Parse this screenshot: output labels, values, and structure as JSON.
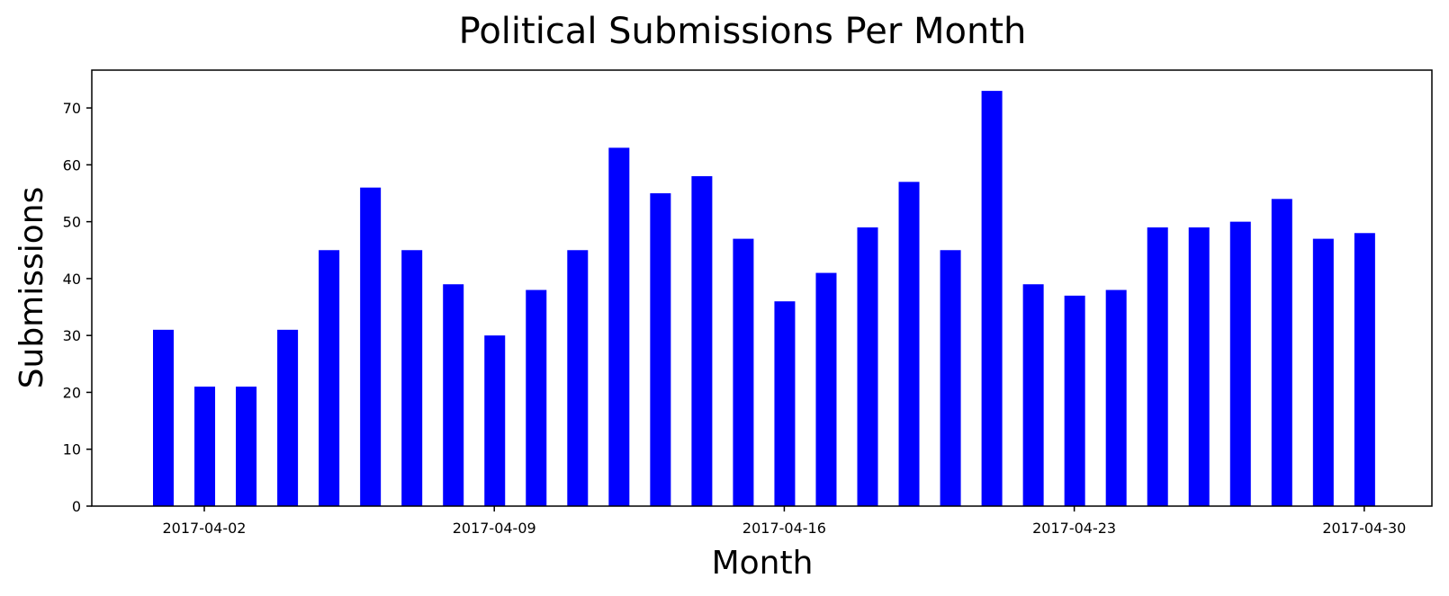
{
  "chart_data": {
    "type": "bar",
    "title": "Political Submissions Per Month",
    "xlabel": "Month",
    "ylabel": "Submissions",
    "x": [
      "2017-04-01",
      "2017-04-02",
      "2017-04-03",
      "2017-04-04",
      "2017-04-05",
      "2017-04-06",
      "2017-04-07",
      "2017-04-08",
      "2017-04-09",
      "2017-04-10",
      "2017-04-11",
      "2017-04-12",
      "2017-04-13",
      "2017-04-14",
      "2017-04-15",
      "2017-04-16",
      "2017-04-17",
      "2017-04-18",
      "2017-04-19",
      "2017-04-20",
      "2017-04-21",
      "2017-04-22",
      "2017-04-23",
      "2017-04-24",
      "2017-04-25",
      "2017-04-26",
      "2017-04-27",
      "2017-04-28",
      "2017-04-29",
      "2017-04-30"
    ],
    "values": [
      31,
      21,
      21,
      31,
      45,
      56,
      45,
      39,
      30,
      38,
      45,
      63,
      55,
      58,
      47,
      36,
      41,
      49,
      57,
      45,
      73,
      39,
      37,
      38,
      49,
      49,
      50,
      54,
      47,
      48
    ],
    "xticks": [
      "2017-04-02",
      "2017-04-09",
      "2017-04-16",
      "2017-04-23",
      "2017-04-30"
    ],
    "yticks": [
      0,
      10,
      20,
      30,
      40,
      50,
      60,
      70
    ],
    "ylim": [
      0,
      76.65
    ],
    "bar_color": "#0000ff",
    "grid": false,
    "legend": "none"
  }
}
